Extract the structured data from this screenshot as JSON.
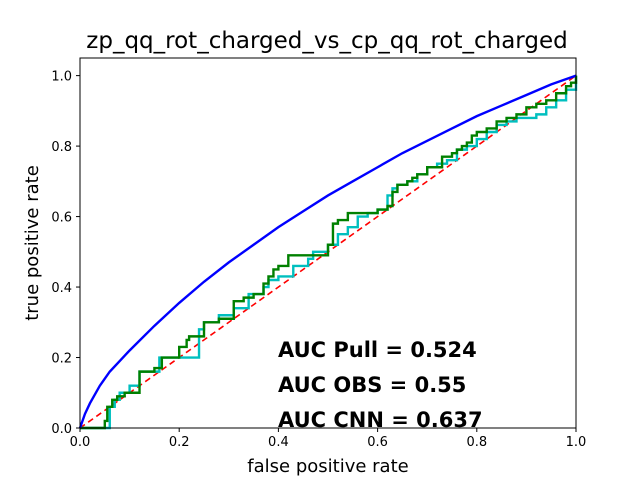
{
  "chart_data": {
    "type": "line",
    "title": "zp_qq_rot_charged_vs_cp_qq_rot_charged",
    "xlabel": "false positive rate",
    "ylabel": "true positive rate",
    "xlim": [
      0.0,
      1.0
    ],
    "ylim": [
      0.0,
      1.05
    ],
    "grid": false,
    "x_ticks": [
      "0.0",
      "0.2",
      "0.4",
      "0.6",
      "0.8",
      "1.0"
    ],
    "y_ticks": [
      "0.0",
      "0.2",
      "0.4",
      "0.6",
      "0.8",
      "1.0"
    ],
    "x_tick_values": [
      0,
      0.2,
      0.4,
      0.6,
      0.8,
      1.0
    ],
    "y_tick_values": [
      0,
      0.2,
      0.4,
      0.6,
      0.8,
      1.0
    ],
    "series": [
      {
        "color": "#0000ff",
        "style": "solid",
        "x": [
          0,
          0.01,
          0.02,
          0.04,
          0.06,
          0.08,
          0.1,
          0.15,
          0.2,
          0.25,
          0.3,
          0.35,
          0.4,
          0.45,
          0.5,
          0.55,
          0.6,
          0.65,
          0.7,
          0.75,
          0.8,
          0.85,
          0.9,
          0.95,
          1.0
        ],
        "y": [
          0,
          0.04,
          0.07,
          0.12,
          0.16,
          0.19,
          0.22,
          0.29,
          0.355,
          0.415,
          0.47,
          0.52,
          0.57,
          0.615,
          0.66,
          0.7,
          0.74,
          0.78,
          0.815,
          0.85,
          0.885,
          0.915,
          0.945,
          0.975,
          1.0
        ]
      },
      {
        "color": "#008000",
        "style": "step",
        "x": [
          0,
          0.05,
          0.055,
          0.065,
          0.075,
          0.09,
          0.12,
          0.15,
          0.165,
          0.19,
          0.2,
          0.215,
          0.22,
          0.25,
          0.26,
          0.28,
          0.31,
          0.33,
          0.35,
          0.37,
          0.38,
          0.39,
          0.4,
          0.42,
          0.45,
          0.48,
          0.5,
          0.51,
          0.52,
          0.54,
          0.56,
          0.6,
          0.62,
          0.63,
          0.64,
          0.66,
          0.67,
          0.68,
          0.7,
          0.71,
          0.73,
          0.75,
          0.76,
          0.77,
          0.78,
          0.79,
          0.8,
          0.82,
          0.84,
          0.86,
          0.88,
          0.9,
          0.92,
          0.94,
          0.96,
          0.98,
          0.99,
          1.0
        ],
        "y": [
          0,
          0.02,
          0.06,
          0.08,
          0.09,
          0.1,
          0.16,
          0.17,
          0.2,
          0.2,
          0.23,
          0.25,
          0.26,
          0.3,
          0.3,
          0.31,
          0.36,
          0.37,
          0.38,
          0.41,
          0.43,
          0.45,
          0.46,
          0.49,
          0.49,
          0.49,
          0.52,
          0.58,
          0.59,
          0.61,
          0.61,
          0.62,
          0.63,
          0.67,
          0.69,
          0.7,
          0.71,
          0.72,
          0.74,
          0.74,
          0.77,
          0.78,
          0.79,
          0.8,
          0.81,
          0.83,
          0.84,
          0.85,
          0.87,
          0.88,
          0.89,
          0.91,
          0.92,
          0.93,
          0.95,
          0.97,
          0.98,
          1.0
        ]
      },
      {
        "color": "#00bfbf",
        "style": "step",
        "x": [
          0,
          0.06,
          0.07,
          0.08,
          0.1,
          0.12,
          0.16,
          0.24,
          0.25,
          0.28,
          0.31,
          0.34,
          0.37,
          0.38,
          0.4,
          0.43,
          0.46,
          0.47,
          0.5,
          0.52,
          0.54,
          0.56,
          0.58,
          0.6,
          0.62,
          0.63,
          0.64,
          0.66,
          0.68,
          0.7,
          0.72,
          0.74,
          0.76,
          0.78,
          0.8,
          0.82,
          0.84,
          0.86,
          0.88,
          0.9,
          0.92,
          0.94,
          0.96,
          0.98,
          1.0
        ],
        "y": [
          0,
          0.06,
          0.08,
          0.1,
          0.12,
          0.16,
          0.2,
          0.28,
          0.3,
          0.32,
          0.34,
          0.38,
          0.4,
          0.42,
          0.43,
          0.46,
          0.48,
          0.5,
          0.52,
          0.55,
          0.57,
          0.6,
          0.61,
          0.62,
          0.66,
          0.68,
          0.69,
          0.7,
          0.72,
          0.74,
          0.75,
          0.76,
          0.79,
          0.8,
          0.82,
          0.84,
          0.86,
          0.87,
          0.88,
          0.88,
          0.89,
          0.91,
          0.93,
          0.96,
          1.0
        ]
      },
      {
        "color": "#ff0000",
        "style": "dashed",
        "x": [
          0,
          1.0
        ],
        "y": [
          0,
          1.0
        ]
      }
    ],
    "annotations": [
      "AUC Pull = 0.524",
      "AUC OBS = 0.55",
      "AUC CNN = 0.637"
    ]
  }
}
